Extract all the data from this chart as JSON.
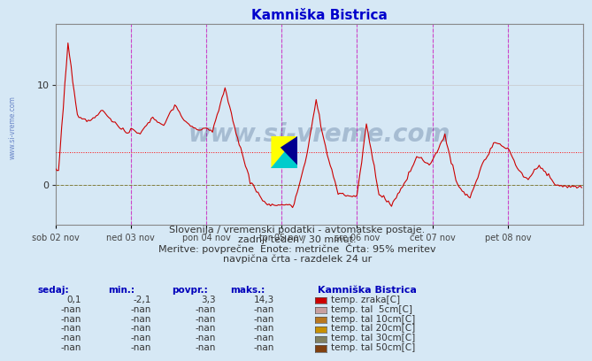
{
  "title": "Kamniška Bistrica",
  "title_color": "#0000cc",
  "bg_color": "#d6e8f5",
  "grid_color": "#c8c8c8",
  "zero_line_color": "#808040",
  "avg_line_color": "#ff0000",
  "avg_value": 3.3,
  "ylim": [
    -4,
    16
  ],
  "yticks": [
    0,
    10
  ],
  "line_color": "#cc0000",
  "line_width": 0.8,
  "vline_color": "#cc44cc",
  "watermark": "www.si-vreme.com",
  "watermark_color": "#1a3a6b",
  "watermark_alpha": 0.25,
  "subtitle1": "Slovenija / vremenski podatki - avtomatske postaje.",
  "subtitle2": "zadnji teden / 30 minut.",
  "subtitle3": "Meritve: povprečne  Enote: metrične  Črta: 95% meritev",
  "subtitle4": "navpična črta - razdelek 24 ur",
  "subtitle_color": "#333333",
  "subtitle_fontsize": 8,
  "table_header_color": "#0000bb",
  "table_value_color": "#333333",
  "legend_colors": [
    "#cc0000",
    "#c8a0a0",
    "#b87820",
    "#c89000",
    "#808060",
    "#804010"
  ],
  "legend_labels": [
    "temp. zraka[C]",
    "temp. tal  5cm[C]",
    "temp. tal 10cm[C]",
    "temp. tal 20cm[C]",
    "temp. tal 30cm[C]",
    "temp. tal 50cm[C]"
  ],
  "table_cols": [
    "sedaj:",
    "min.:",
    "povpr.:",
    "maks.:"
  ],
  "table_rows": [
    [
      "0,1",
      "-2,1",
      "3,3",
      "14,3"
    ],
    [
      "-nan",
      "-nan",
      "-nan",
      "-nan"
    ],
    [
      "-nan",
      "-nan",
      "-nan",
      "-nan"
    ],
    [
      "-nan",
      "-nan",
      "-nan",
      "-nan"
    ],
    [
      "-nan",
      "-nan",
      "-nan",
      "-nan"
    ],
    [
      "-nan",
      "-nan",
      "-nan",
      "-nan"
    ]
  ],
  "x_tick_labels": [
    "sob 02 nov",
    "ned 03 nov",
    "pon 04 nov",
    "tor 05 nov",
    "sre 06 nov",
    "čet 07 nov",
    "pet 08 nov"
  ],
  "x_tick_positions": [
    0,
    48,
    96,
    144,
    192,
    240,
    288
  ],
  "vline_positions": [
    48,
    96,
    144,
    192,
    240,
    288,
    336
  ],
  "total_points": 336
}
